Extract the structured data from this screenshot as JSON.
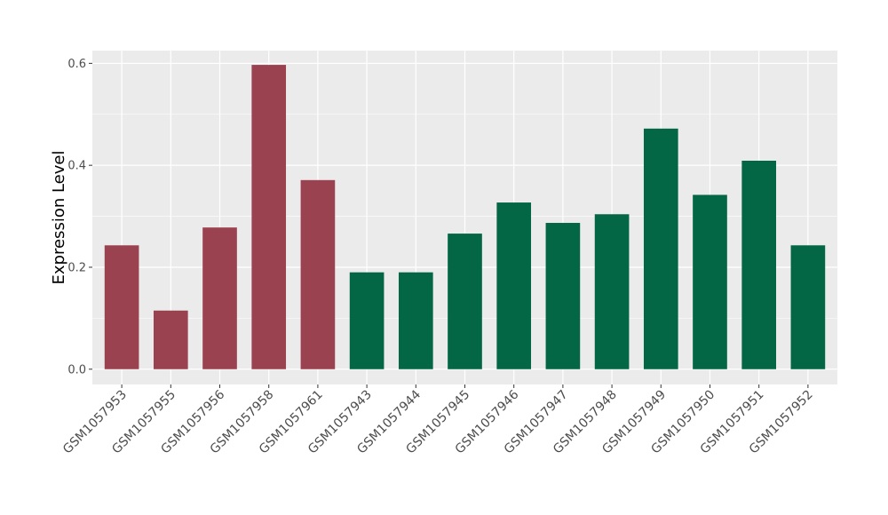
{
  "chart_data": {
    "type": "bar",
    "title": "",
    "xlabel": "",
    "ylabel": "Expression Level",
    "ylim": [
      -0.03,
      0.625
    ],
    "yticks": [
      0.0,
      0.2,
      0.4,
      0.6
    ],
    "ytick_labels": [
      "0.0",
      "0.2",
      "0.4",
      "0.6"
    ],
    "grid": true,
    "background": "#ebebeb",
    "grid_color": "#ffffff",
    "categories": [
      "GSM1057953",
      "GSM1057955",
      "GSM1057956",
      "GSM1057958",
      "GSM1057961",
      "GSM1057943",
      "GSM1057944",
      "GSM1057945",
      "GSM1057946",
      "GSM1057947",
      "GSM1057948",
      "GSM1057949",
      "GSM1057950",
      "GSM1057951",
      "GSM1057952"
    ],
    "values": [
      0.243,
      0.115,
      0.278,
      0.597,
      0.371,
      0.19,
      0.19,
      0.266,
      0.327,
      0.287,
      0.304,
      0.472,
      0.342,
      0.409,
      0.243
    ],
    "bar_colors": [
      "#9a4250",
      "#9a4250",
      "#9a4250",
      "#9a4250",
      "#9a4250",
      "#036645",
      "#036645",
      "#036645",
      "#036645",
      "#036645",
      "#036645",
      "#036645",
      "#036645",
      "#036645",
      "#036645"
    ]
  }
}
